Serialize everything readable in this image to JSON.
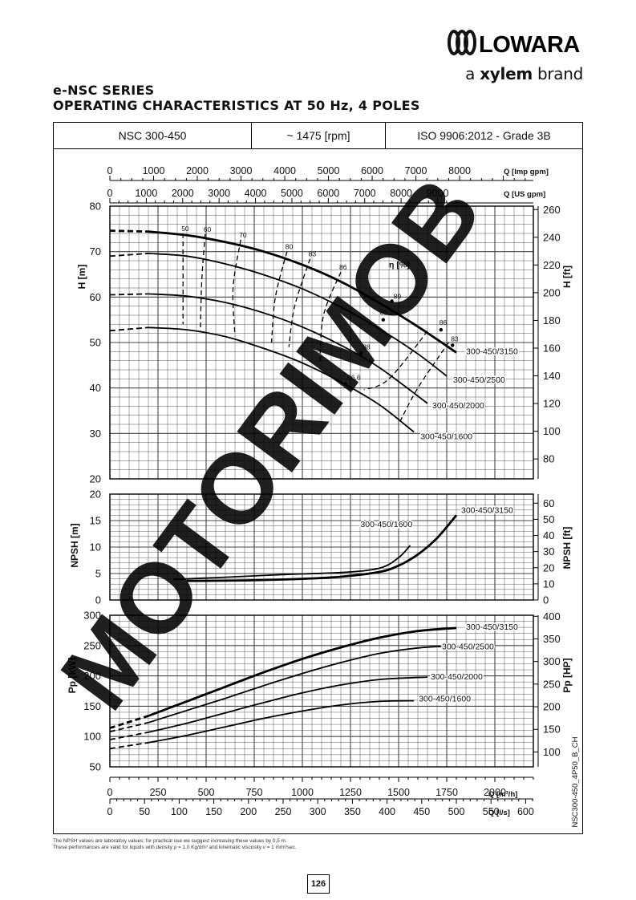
{
  "brand": {
    "name": "LOWARA",
    "tag_a": "a ",
    "tag_xylem": "xylem",
    "tag_brand": " brand"
  },
  "title": {
    "line1": "e-NSC SERIES",
    "line2": "OPERATING CHARACTERISTICS AT 50 Hz, 4 POLES"
  },
  "header": {
    "model": "NSC 300-450",
    "speed": "~ 1475 [rpm]",
    "standard": "ISO 9906:2012 - Grade 3B"
  },
  "footnote": {
    "line1": "The NPSH values are laboratory values; for practical use we suggest increasing these values by 0,5 m.",
    "line2": "These performances are valid for liquids with density ρ = 1,0 Kg/dm³ and kinematic viscosity ν = 1 mm²/sec."
  },
  "page_number": "126",
  "side_code": "NSC300-450_4P50_B_CH",
  "watermark": "MOTORIMOB",
  "colors": {
    "line": "#000000",
    "grid": "#555555",
    "watermark": "rgba(0,0,0,0.88)"
  },
  "chart_data": [
    {
      "type": "line",
      "title": "",
      "panel": "head",
      "xlabel": "Q [m³/h]",
      "ylabel": "H [m]",
      "ylabel_right": "H [ft]",
      "xlim": [
        0,
        2200
      ],
      "ylim": [
        20,
        80
      ],
      "yticks": [
        20,
        30,
        40,
        50,
        60,
        70,
        80
      ],
      "yticks_right": [
        80,
        100,
        120,
        140,
        160,
        180,
        200,
        220,
        240,
        260
      ],
      "top_axes": [
        {
          "label": "Q [Imp gpm]",
          "ticks": [
            0,
            1000,
            2000,
            3000,
            4000,
            5000,
            6000,
            7000,
            8000
          ]
        },
        {
          "label": "Q [US gpm]",
          "ticks": [
            0,
            1000,
            2000,
            3000,
            4000,
            5000,
            6000,
            7000,
            8000,
            9000
          ]
        }
      ],
      "series": [
        {
          "name": "300-450/3150",
          "x": [
            0,
            200,
            400,
            600,
            800,
            1000,
            1200,
            1400,
            1600,
            1800
          ],
          "y": [
            74.6,
            74.4,
            73.6,
            72.1,
            70.0,
            67.1,
            63.4,
            58.7,
            53.5,
            47.8
          ]
        },
        {
          "name": "300-450/2500",
          "x": [
            0,
            200,
            400,
            600,
            800,
            1000,
            1200,
            1400,
            1600,
            1750
          ],
          "y": [
            69.0,
            69.6,
            69.0,
            67.3,
            64.9,
            61.8,
            57.8,
            53.0,
            47.5,
            42.6
          ]
        },
        {
          "name": "300-450/2000",
          "x": [
            0,
            200,
            400,
            600,
            800,
            1000,
            1200,
            1400,
            1650
          ],
          "y": [
            60.5,
            60.7,
            60.2,
            58.8,
            56.5,
            53.4,
            49.4,
            44.5,
            36.6
          ]
        },
        {
          "name": "300-450/1600",
          "x": [
            0,
            200,
            400,
            600,
            800,
            1000,
            1200,
            1400,
            1580
          ],
          "y": [
            52.6,
            53.3,
            52.8,
            51.3,
            48.7,
            45.5,
            41.3,
            36.3,
            30.3
          ]
        }
      ],
      "efficiency_label": "η [%]",
      "efficiency_values": [
        "50",
        "60",
        "70",
        "80",
        "83",
        "86",
        "89",
        "88.1",
        "88",
        "86.6",
        "86",
        "83"
      ]
    },
    {
      "type": "line",
      "title": "",
      "panel": "npsh",
      "xlabel": "Q [m³/h]",
      "ylabel": "NPSH [m]",
      "ylabel_right": "NPSH [ft]",
      "xlim": [
        0,
        2200
      ],
      "ylim": [
        0,
        20
      ],
      "yticks": [
        0,
        5,
        10,
        15,
        20
      ],
      "yticks_right": [
        0,
        10,
        20,
        30,
        40,
        50,
        60
      ],
      "series": [
        {
          "name": "300-450/3150",
          "x": [
            400,
            700,
            1000,
            1200,
            1400,
            1500,
            1600,
            1700,
            1800
          ],
          "y": [
            3.6,
            3.7,
            4.0,
            4.4,
            5.3,
            6.5,
            8.6,
            11.7,
            16.0
          ]
        },
        {
          "name": "300-450/1600",
          "x": [
            330,
            600,
            900,
            1200,
            1400,
            1500,
            1560
          ],
          "y": [
            3.9,
            4.3,
            4.8,
            5.2,
            6.0,
            8.0,
            10.3
          ]
        }
      ]
    },
    {
      "type": "line",
      "title": "",
      "panel": "power",
      "xlabel": "Q [m³/h]",
      "ylabel": "Pp [kW]",
      "ylabel_right": "Pp [HP]",
      "xlim": [
        0,
        2200
      ],
      "ylim": [
        50,
        300
      ],
      "yticks": [
        50,
        100,
        150,
        200,
        250,
        300
      ],
      "yticks_right": [
        100,
        150,
        200,
        250,
        300,
        350,
        400
      ],
      "series": [
        {
          "name": "300-450/3150",
          "x": [
            0,
            200,
            400,
            600,
            800,
            1000,
            1200,
            1400,
            1600,
            1800
          ],
          "y": [
            114,
            134,
            158,
            182,
            206,
            228,
            247,
            263,
            274,
            279
          ]
        },
        {
          "name": "300-450/2500",
          "x": [
            0,
            200,
            400,
            600,
            800,
            1000,
            1200,
            1400,
            1600,
            1750
          ],
          "y": [
            108,
            123,
            143,
            163,
            184,
            204,
            222,
            237,
            246,
            249
          ]
        },
        {
          "name": "300-450/2000",
          "x": [
            0,
            200,
            400,
            600,
            800,
            1000,
            1200,
            1400,
            1650
          ],
          "y": [
            95,
            107,
            122,
            139,
            156,
            172,
            185,
            194,
            198
          ]
        },
        {
          "name": "300-450/1600",
          "x": [
            0,
            200,
            400,
            600,
            800,
            1000,
            1200,
            1400,
            1580
          ],
          "y": [
            80,
            90,
            102,
            116,
            130,
            142,
            152,
            158,
            159
          ]
        }
      ],
      "bottom_axes": [
        {
          "label": "Q [m³/h]",
          "ticks": [
            0,
            250,
            500,
            750,
            1000,
            1250,
            1500,
            1750,
            2000
          ]
        },
        {
          "label": "Q [l/s]",
          "ticks": [
            0,
            50,
            100,
            150,
            200,
            250,
            300,
            350,
            400,
            450,
            500,
            550,
            600
          ]
        }
      ]
    }
  ]
}
